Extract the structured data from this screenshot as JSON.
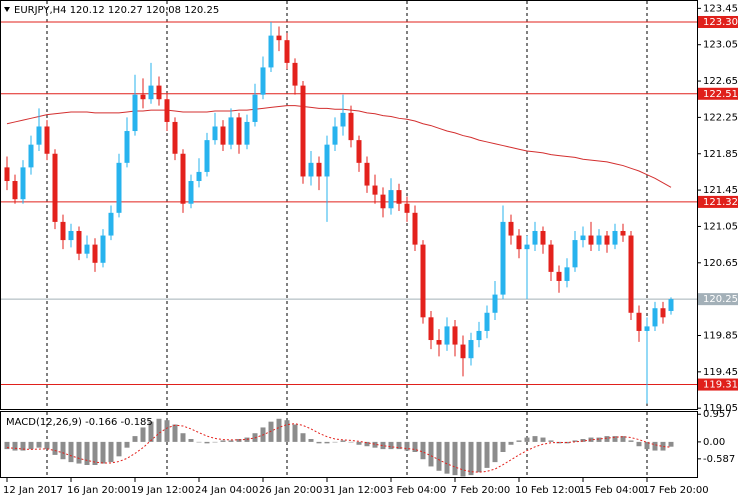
{
  "chart_data": [
    {
      "type": "candlestick",
      "title": "EURJPY,H4  120.12 120.27 120.08 120.25",
      "categories": [
        "12 Jan 2017",
        null,
        null,
        null,
        null,
        null,
        null,
        null,
        "16 Jan 20:00",
        null,
        null,
        null,
        null,
        null,
        null,
        null,
        "19 Jan 12:00",
        null,
        null,
        null,
        null,
        null,
        null,
        null,
        "24 Jan 04:00",
        null,
        null,
        null,
        null,
        null,
        null,
        null,
        "26 Jan 20:00",
        null,
        null,
        null,
        null,
        null,
        null,
        null,
        "31 Jan 12:00",
        null,
        null,
        null,
        null,
        null,
        null,
        null,
        "3 Feb 04:00",
        null,
        null,
        null,
        null,
        null,
        null,
        null,
        "7 Feb 20:00",
        null,
        null,
        null,
        null,
        null,
        null,
        null,
        "10 Feb 12:00",
        null,
        null,
        null,
        null,
        null,
        null,
        null,
        "15 Feb 04:00",
        null,
        null,
        null,
        null,
        null,
        null,
        null,
        "17 Feb 20:00",
        null,
        null,
        null
      ],
      "open": [
        121.7,
        121.55,
        121.35,
        121.7,
        121.95,
        122.15,
        121.85,
        121.1,
        120.9,
        121.0,
        120.75,
        120.85,
        120.65,
        120.95,
        121.2,
        121.75,
        122.1,
        122.5,
        122.45,
        122.6,
        122.45,
        122.2,
        121.85,
        121.3,
        121.55,
        121.65,
        122.0,
        122.15,
        121.95,
        122.25,
        121.95,
        122.2,
        122.5,
        122.8,
        123.15,
        123.1,
        122.85,
        122.6,
        121.6,
        121.75,
        121.6,
        121.95,
        122.15,
        122.3,
        122.0,
        121.75,
        121.5,
        121.4,
        121.25,
        121.45,
        121.3,
        121.2,
        120.85,
        120.05,
        119.8,
        119.75,
        119.95,
        119.75,
        119.6,
        119.8,
        119.9,
        120.1,
        120.3,
        121.1,
        120.95,
        120.8,
        120.85,
        121.0,
        120.85,
        120.55,
        120.45,
        120.6,
        120.9,
        120.95,
        120.85,
        120.95,
        120.85,
        121.0,
        120.95,
        120.1,
        119.9,
        119.95,
        120.15,
        120.12
      ],
      "high": [
        121.82,
        121.62,
        121.78,
        122.05,
        122.35,
        122.22,
        121.9,
        121.18,
        121.08,
        121.05,
        120.95,
        120.92,
        121.02,
        121.28,
        121.85,
        122.25,
        122.72,
        122.68,
        122.85,
        122.7,
        122.52,
        122.25,
        121.9,
        121.62,
        121.8,
        122.08,
        122.3,
        122.22,
        122.35,
        122.3,
        122.28,
        122.62,
        122.92,
        123.3,
        123.25,
        123.18,
        122.9,
        122.65,
        121.88,
        121.82,
        122.05,
        122.25,
        122.5,
        122.38,
        122.05,
        121.82,
        121.62,
        121.48,
        121.58,
        121.52,
        121.38,
        121.28,
        120.9,
        120.12,
        119.92,
        120.05,
        120.02,
        119.85,
        119.88,
        120.0,
        120.18,
        120.45,
        121.28,
        121.18,
        121.02,
        120.95,
        121.1,
        121.05,
        120.9,
        120.62,
        120.7,
        121.0,
        121.05,
        121.1,
        121.02,
        121.0,
        121.08,
        121.08,
        121.0,
        120.18,
        120.05,
        120.22,
        120.22,
        120.27
      ],
      "low": [
        121.45,
        121.3,
        121.3,
        121.62,
        121.88,
        121.78,
        121.02,
        120.8,
        120.82,
        120.68,
        120.7,
        120.55,
        120.6,
        120.9,
        121.15,
        121.7,
        122.05,
        122.35,
        122.4,
        122.38,
        122.1,
        121.78,
        121.2,
        121.25,
        121.48,
        121.6,
        121.95,
        121.88,
        121.9,
        121.85,
        121.9,
        122.15,
        122.45,
        122.75,
        122.98,
        122.78,
        122.5,
        121.52,
        121.5,
        121.45,
        121.1,
        121.88,
        122.05,
        121.92,
        121.65,
        121.42,
        121.3,
        121.15,
        121.18,
        121.22,
        121.1,
        120.78,
        119.98,
        119.7,
        119.62,
        119.68,
        119.62,
        119.4,
        119.52,
        119.72,
        119.82,
        120.02,
        120.25,
        120.85,
        120.7,
        120.25,
        120.78,
        120.75,
        120.45,
        120.32,
        120.38,
        120.55,
        120.82,
        120.78,
        120.78,
        120.76,
        120.8,
        120.88,
        120.02,
        119.78,
        119.1,
        119.9,
        119.98,
        120.08
      ],
      "close": [
        121.55,
        121.35,
        121.7,
        121.95,
        122.15,
        121.85,
        121.1,
        120.9,
        121.0,
        120.75,
        120.85,
        120.65,
        120.95,
        121.2,
        121.75,
        122.1,
        122.5,
        122.45,
        122.6,
        122.45,
        122.2,
        121.85,
        121.3,
        121.55,
        121.65,
        122.0,
        122.15,
        121.95,
        122.25,
        121.95,
        122.2,
        122.5,
        122.8,
        123.15,
        123.1,
        122.85,
        122.6,
        121.6,
        121.75,
        121.6,
        121.95,
        122.15,
        122.3,
        122.0,
        121.75,
        121.5,
        121.4,
        121.25,
        121.45,
        121.3,
        121.2,
        120.85,
        120.05,
        119.8,
        119.75,
        119.95,
        119.75,
        119.6,
        119.8,
        119.9,
        120.1,
        120.3,
        121.1,
        120.95,
        120.8,
        120.85,
        121.0,
        120.85,
        120.55,
        120.45,
        120.6,
        120.9,
        120.95,
        120.85,
        120.95,
        120.85,
        121.0,
        120.95,
        120.1,
        119.9,
        119.95,
        120.15,
        120.05,
        120.25
      ],
      "up_color": "#27b3ee",
      "down_color": "#e3211c",
      "ma": {
        "color": "#d32f2f",
        "values": [
          122.18,
          122.2,
          122.22,
          122.24,
          122.26,
          122.28,
          122.29,
          122.3,
          122.31,
          122.31,
          122.31,
          122.3,
          122.3,
          122.3,
          122.3,
          122.31,
          122.32,
          122.32,
          122.33,
          122.33,
          122.33,
          122.32,
          122.31,
          122.31,
          122.31,
          122.31,
          122.32,
          122.32,
          122.32,
          122.33,
          122.33,
          122.34,
          122.35,
          122.36,
          122.37,
          122.38,
          122.38,
          122.37,
          122.36,
          122.35,
          122.35,
          122.34,
          122.34,
          122.33,
          122.32,
          122.3,
          122.29,
          122.27,
          122.26,
          122.24,
          122.23,
          122.21,
          122.18,
          122.16,
          122.13,
          122.1,
          122.08,
          122.05,
          122.03,
          122.0,
          121.98,
          121.96,
          121.94,
          121.92,
          121.9,
          121.88,
          121.87,
          121.86,
          121.84,
          121.83,
          121.82,
          121.81,
          121.79,
          121.78,
          121.77,
          121.76,
          121.74,
          121.72,
          121.69,
          121.66,
          121.62,
          121.58,
          121.53,
          121.48
        ]
      },
      "hlines": [
        {
          "value": 123.3,
          "label": "123.30"
        },
        {
          "value": 122.51,
          "label": "122.51"
        },
        {
          "value": 121.32,
          "label": "121.32"
        },
        {
          "value": 119.31,
          "label": "119.31"
        }
      ],
      "hline_color": "#e0201b",
      "price_line": {
        "value": 120.25,
        "label": "120.25"
      },
      "price_line_color": "#a3b0b8",
      "ylim": [
        119.03,
        123.52
      ],
      "yticks": [
        123.45,
        123.05,
        122.65,
        122.25,
        121.85,
        121.45,
        121.05,
        120.65,
        119.85,
        119.45,
        119.05
      ]
    },
    {
      "type": "macd",
      "label": "MACD(12,26,9) -0.166 -0.185",
      "histogram": {
        "color": "#8c8c8c",
        "values": [
          -0.25,
          -0.3,
          -0.3,
          -0.25,
          -0.2,
          -0.25,
          -0.45,
          -0.6,
          -0.7,
          -0.75,
          -0.8,
          -0.8,
          -0.75,
          -0.7,
          -0.5,
          -0.2,
          0.2,
          0.5,
          0.7,
          0.8,
          0.75,
          0.6,
          0.3,
          0.1,
          0.0,
          -0.05,
          0.0,
          0.05,
          0.05,
          0.1,
          0.15,
          0.3,
          0.5,
          0.7,
          0.8,
          0.75,
          0.6,
          0.3,
          0.1,
          -0.05,
          -0.05,
          0.0,
          0.05,
          0.0,
          -0.1,
          -0.15,
          -0.2,
          -0.25,
          -0.25,
          -0.25,
          -0.3,
          -0.35,
          -0.6,
          -0.85,
          -1.0,
          -1.1,
          -1.15,
          -1.2,
          -1.15,
          -1.05,
          -0.9,
          -0.7,
          -0.35,
          -0.1,
          0.05,
          0.15,
          0.2,
          0.15,
          0.05,
          -0.05,
          -0.05,
          0.05,
          0.1,
          0.15,
          0.15,
          0.2,
          0.2,
          0.2,
          0.05,
          -0.15,
          -0.25,
          -0.3,
          -0.3,
          -0.166
        ]
      },
      "signal": {
        "color": "#e3211c",
        "values": [
          -0.2,
          -0.22,
          -0.25,
          -0.26,
          -0.25,
          -0.24,
          -0.3,
          -0.38,
          -0.48,
          -0.57,
          -0.64,
          -0.7,
          -0.73,
          -0.73,
          -0.68,
          -0.57,
          -0.4,
          -0.2,
          0.05,
          0.3,
          0.48,
          0.58,
          0.55,
          0.45,
          0.32,
          0.2,
          0.12,
          0.08,
          0.07,
          0.07,
          0.09,
          0.14,
          0.24,
          0.37,
          0.5,
          0.6,
          0.63,
          0.57,
          0.45,
          0.3,
          0.18,
          0.1,
          0.07,
          0.05,
          0.02,
          -0.03,
          -0.08,
          -0.13,
          -0.17,
          -0.2,
          -0.23,
          -0.26,
          -0.35,
          -0.48,
          -0.62,
          -0.76,
          -0.87,
          -0.97,
          -1.03,
          -1.05,
          -1.02,
          -0.94,
          -0.79,
          -0.62,
          -0.45,
          -0.3,
          -0.17,
          -0.08,
          -0.03,
          -0.02,
          -0.02,
          0.0,
          0.03,
          0.07,
          0.1,
          0.13,
          0.16,
          0.18,
          0.15,
          0.08,
          -0.02,
          -0.1,
          -0.16,
          -0.185
        ]
      },
      "ylim": [
        -1.25,
        1.0
      ],
      "yticks": [
        0.957,
        {
          "value": 0,
          "label": "0.00"
        },
        -0.587
      ]
    }
  ]
}
